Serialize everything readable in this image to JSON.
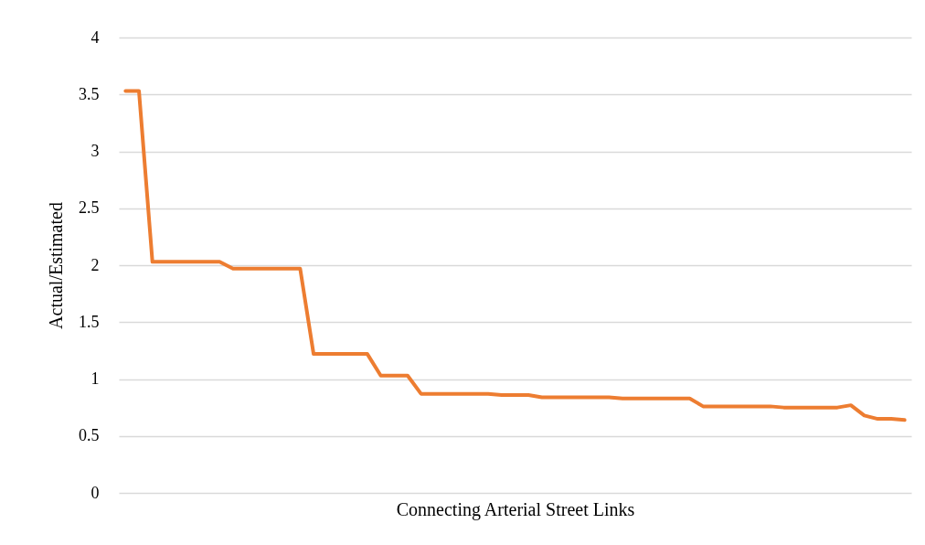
{
  "chart_data": {
    "type": "line",
    "xlabel": "Connecting Arterial Street Links",
    "ylabel": "Actual/Estimated",
    "categories": [
      null,
      null,
      null,
      null,
      null,
      null,
      null,
      null,
      null,
      null,
      null,
      null,
      null,
      null,
      null,
      null,
      null,
      null,
      null,
      null,
      null,
      null,
      null,
      null,
      null,
      null,
      null,
      null,
      null,
      null,
      null,
      null,
      null,
      null,
      null,
      null,
      null,
      null,
      null,
      null,
      null,
      null,
      null,
      null,
      null,
      null,
      null,
      null,
      null,
      null,
      null,
      null,
      null,
      null,
      null,
      null,
      null,
      null,
      null
    ],
    "series": [
      {
        "color": "#ed7d31",
        "values": [
          3.53,
          3.53,
          2.03,
          2.03,
          2.03,
          2.03,
          2.03,
          2.03,
          1.97,
          1.97,
          1.97,
          1.97,
          1.97,
          1.97,
          1.22,
          1.22,
          1.22,
          1.22,
          1.22,
          1.03,
          1.03,
          1.03,
          0.87,
          0.87,
          0.87,
          0.87,
          0.87,
          0.87,
          0.86,
          0.86,
          0.86,
          0.84,
          0.84,
          0.84,
          0.84,
          0.84,
          0.84,
          0.83,
          0.83,
          0.83,
          0.83,
          0.83,
          0.83,
          0.76,
          0.76,
          0.76,
          0.76,
          0.76,
          0.76,
          0.75,
          0.75,
          0.75,
          0.75,
          0.75,
          0.77,
          0.68,
          0.65,
          0.65,
          0.64
        ]
      }
    ],
    "ylim": [
      0,
      4
    ],
    "yticks": [
      0,
      0.5,
      1,
      1.5,
      2,
      2.5,
      3,
      3.5,
      4
    ],
    "grid": "y",
    "legend": false,
    "marker": "none",
    "line_style": "solid",
    "tick_labels": "y"
  }
}
